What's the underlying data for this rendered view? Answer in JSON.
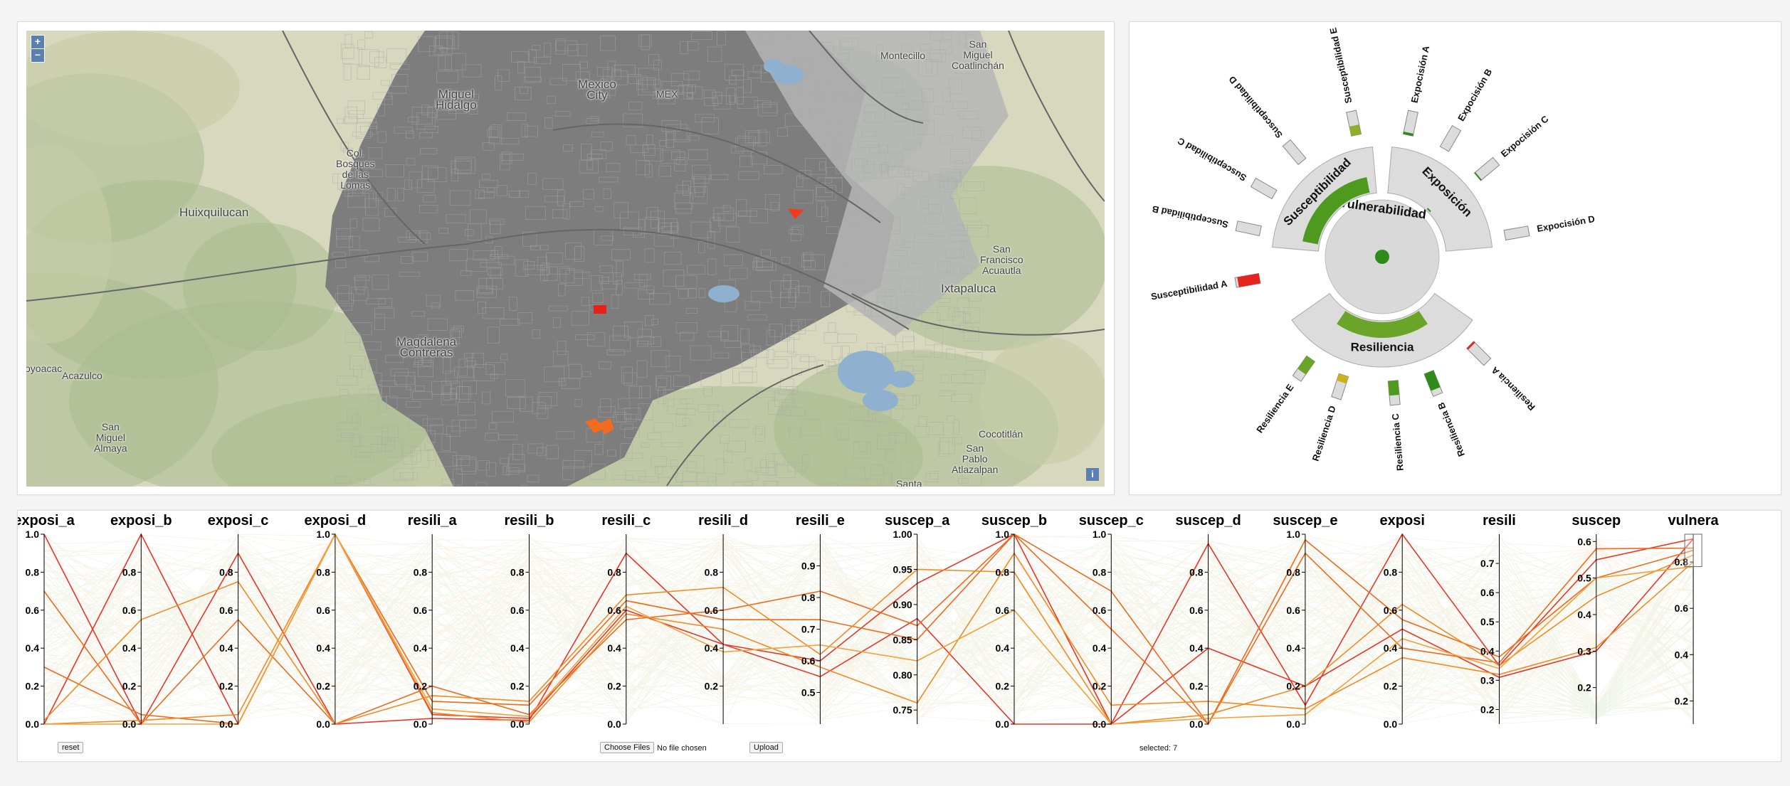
{
  "map": {
    "zoom_in": "+",
    "zoom_out": "−",
    "info": "i",
    "places": [
      {
        "text": "Montecillo",
        "big": false
      },
      {
        "text": "San\nMiguel\nCoatlinchán",
        "big": false
      },
      {
        "text": "Mexico\nCity",
        "big": true
      },
      {
        "text": "Miguel\nHidalgo",
        "big": true
      },
      {
        "text": "Huixquilucan",
        "big": true
      },
      {
        "text": "Col.\nBosques\nde las\nLomas",
        "big": false
      },
      {
        "text": "San\nFrancisco\nAcuautla",
        "big": false
      },
      {
        "text": "Ixtapaluca",
        "big": true
      },
      {
        "text": "Magdalena\nContreras",
        "big": true
      },
      {
        "text": "oyoacac",
        "big": false
      },
      {
        "text": "Acazulco",
        "big": false
      },
      {
        "text": "San\nMiguel\nAlmaya",
        "big": false
      },
      {
        "text": "Cocotitlán",
        "big": false
      },
      {
        "text": "San\nPablo\nAtlazalpan",
        "big": false
      },
      {
        "text": "Santa",
        "big": false
      },
      {
        "text": "MEX",
        "big": false
      }
    ]
  },
  "sunburst": {
    "center_label": "Vulnerabilidad",
    "groups": [
      {
        "label": "Susceptibilidad",
        "fill": 0.85
      },
      {
        "label": "Exposición",
        "fill": 0.05
      },
      {
        "label": "Resiliencia",
        "fill": 0.62
      }
    ],
    "leaves": [
      {
        "label": "Susceptibilidad A",
        "color": "#e52421",
        "value": 0.9
      },
      {
        "label": "Susceptibilidad B",
        "color": "#d3d3d3",
        "value": 0.0
      },
      {
        "label": "Susceptibilidad C",
        "color": "#d3d3d3",
        "value": 0.0
      },
      {
        "label": "Susceptibilidad D",
        "color": "#d3d3d3",
        "value": 0.0
      },
      {
        "label": "Susceptibilidad E",
        "color": "#8fb02a",
        "value": 0.4
      },
      {
        "label": "Expocisión A",
        "color": "#2e8b1a",
        "value": 0.1
      },
      {
        "label": "Expocisión B",
        "color": "#d3d3d3",
        "value": 0.0
      },
      {
        "label": "Expocisión C",
        "color": "#2e8b1a",
        "value": 0.05
      },
      {
        "label": "Expocisión D",
        "color": "#d3d3d3",
        "value": 0.0
      },
      {
        "label": "Resiliencia A",
        "color": "#e52421",
        "value": 0.08
      },
      {
        "label": "Resiliencia B",
        "color": "#2e8b1a",
        "value": 0.75
      },
      {
        "label": "Resiliencia C",
        "color": "#4e9a1e",
        "value": 0.6
      },
      {
        "label": "Resiliencia D",
        "color": "#c9b21a",
        "value": 0.3
      },
      {
        "label": "Resiliencia E",
        "color": "#6aa52a",
        "value": 0.65
      }
    ]
  },
  "parallel": {
    "axes": [
      {
        "name": "exposi_a",
        "min": 0,
        "max": 1,
        "ticks": [
          "0.0",
          "0.2",
          "0.4",
          "0.6",
          "0.8",
          "1.0"
        ]
      },
      {
        "name": "exposi_b",
        "min": 0,
        "max": 1,
        "ticks": [
          "0.0",
          "0.2",
          "0.4",
          "0.6",
          "0.8"
        ]
      },
      {
        "name": "exposi_c",
        "min": 0,
        "max": 1,
        "ticks": [
          "0.0",
          "0.2",
          "0.4",
          "0.6",
          "0.8"
        ]
      },
      {
        "name": "exposi_d",
        "min": 0,
        "max": 1,
        "ticks": [
          "0.0",
          "0.2",
          "0.4",
          "0.6",
          "0.8",
          "1.0"
        ]
      },
      {
        "name": "resili_a",
        "min": 0,
        "max": 1,
        "ticks": [
          "0.0",
          "0.2",
          "0.4",
          "0.6",
          "0.8"
        ]
      },
      {
        "name": "resili_b",
        "min": 0,
        "max": 1,
        "ticks": [
          "0.0",
          "0.2",
          "0.4",
          "0.6",
          "0.8"
        ]
      },
      {
        "name": "resili_c",
        "min": 0,
        "max": 1,
        "ticks": [
          "0.0",
          "0.2",
          "0.4",
          "0.6",
          "0.8"
        ]
      },
      {
        "name": "resili_d",
        "min": 0,
        "max": 1,
        "ticks": [
          "0.2",
          "0.4",
          "0.6",
          "0.8"
        ]
      },
      {
        "name": "resili_e",
        "min": 0.4,
        "max": 1,
        "ticks": [
          "0.5",
          "0.6",
          "0.7",
          "0.8",
          "0.9"
        ]
      },
      {
        "name": "suscep_a",
        "min": 0.73,
        "max": 1,
        "ticks": [
          "0.75",
          "0.80",
          "0.85",
          "0.90",
          "0.95",
          "1.00"
        ]
      },
      {
        "name": "suscep_b",
        "min": 0,
        "max": 1,
        "ticks": [
          "0.0",
          "0.2",
          "0.4",
          "0.6",
          "0.8",
          "1.0"
        ]
      },
      {
        "name": "suscep_c",
        "min": 0,
        "max": 1,
        "ticks": [
          "0.0",
          "0.2",
          "0.4",
          "0.6",
          "0.8",
          "1.0"
        ]
      },
      {
        "name": "suscep_d",
        "min": 0,
        "max": 1,
        "ticks": [
          "0.0",
          "0.2",
          "0.4",
          "0.6",
          "0.8"
        ]
      },
      {
        "name": "suscep_e",
        "min": 0,
        "max": 1,
        "ticks": [
          "0.0",
          "0.2",
          "0.4",
          "0.6",
          "0.8",
          "1.0"
        ]
      },
      {
        "name": "exposi",
        "min": 0,
        "max": 1,
        "ticks": [
          "0.0",
          "0.2",
          "0.4",
          "0.6",
          "0.8"
        ]
      },
      {
        "name": "resili",
        "min": 0.15,
        "max": 0.8,
        "ticks": [
          "0.2",
          "0.3",
          "0.4",
          "0.5",
          "0.6",
          "0.7"
        ]
      },
      {
        "name": "suscep",
        "min": 0.1,
        "max": 0.62,
        "ticks": [
          "0.2",
          "0.3",
          "0.4",
          "0.5",
          "0.6"
        ]
      },
      {
        "name": "vulnera",
        "min": 0.1,
        "max": 0.92,
        "ticks": [
          "0.2",
          "0.4",
          "0.6",
          "0.8"
        ]
      }
    ],
    "highlight_colors": [
      "#e8352a",
      "#e8352a",
      "#ee6a1f",
      "#ee6a1f",
      "#f08a25",
      "#f08a25",
      "#f2a03a"
    ],
    "selected_lines": [
      [
        1.0,
        0.0,
        0.9,
        0.0,
        0.03,
        0.02,
        0.9,
        0.42,
        0.6,
        0.93,
        1.0,
        0.0,
        0.95,
        0.1,
        1.0,
        0.35,
        0.55,
        0.9
      ],
      [
        0.0,
        1.0,
        0.0,
        1.0,
        0.05,
        0.03,
        0.6,
        0.42,
        0.55,
        0.88,
        0.0,
        0.0,
        0.4,
        0.2,
        0.5,
        0.31,
        0.3,
        0.9
      ],
      [
        0.7,
        0.0,
        0.55,
        0.0,
        0.2,
        0.05,
        0.55,
        0.6,
        0.82,
        0.87,
        1.0,
        0.7,
        0.0,
        0.97,
        0.55,
        0.38,
        0.5,
        0.85
      ],
      [
        0.3,
        0.05,
        0.0,
        1.0,
        0.12,
        0.1,
        0.65,
        0.55,
        0.73,
        0.85,
        1.0,
        0.5,
        0.0,
        0.9,
        0.4,
        0.36,
        0.58,
        0.86
      ],
      [
        0.02,
        0.55,
        0.75,
        0.0,
        0.15,
        0.12,
        0.68,
        0.72,
        0.62,
        0.95,
        0.8,
        0.0,
        0.05,
        0.2,
        0.63,
        0.35,
        0.45,
        0.83
      ],
      [
        0.0,
        0.02,
        0.05,
        1.0,
        0.06,
        0.01,
        0.58,
        0.5,
        0.58,
        0.76,
        0.9,
        0.1,
        0.12,
        0.08,
        0.35,
        0.32,
        0.31,
        0.8
      ],
      [
        0.0,
        0.0,
        0.0,
        1.0,
        0.08,
        0.04,
        0.62,
        0.38,
        0.65,
        0.82,
        0.6,
        0.0,
        0.03,
        0.05,
        0.45,
        0.34,
        0.5,
        0.78
      ]
    ],
    "reset_label": "reset",
    "choose_label": "Choose Files",
    "no_file_label": "No file chosen",
    "upload_label": "Upload",
    "selected_label": "selected: 7"
  }
}
